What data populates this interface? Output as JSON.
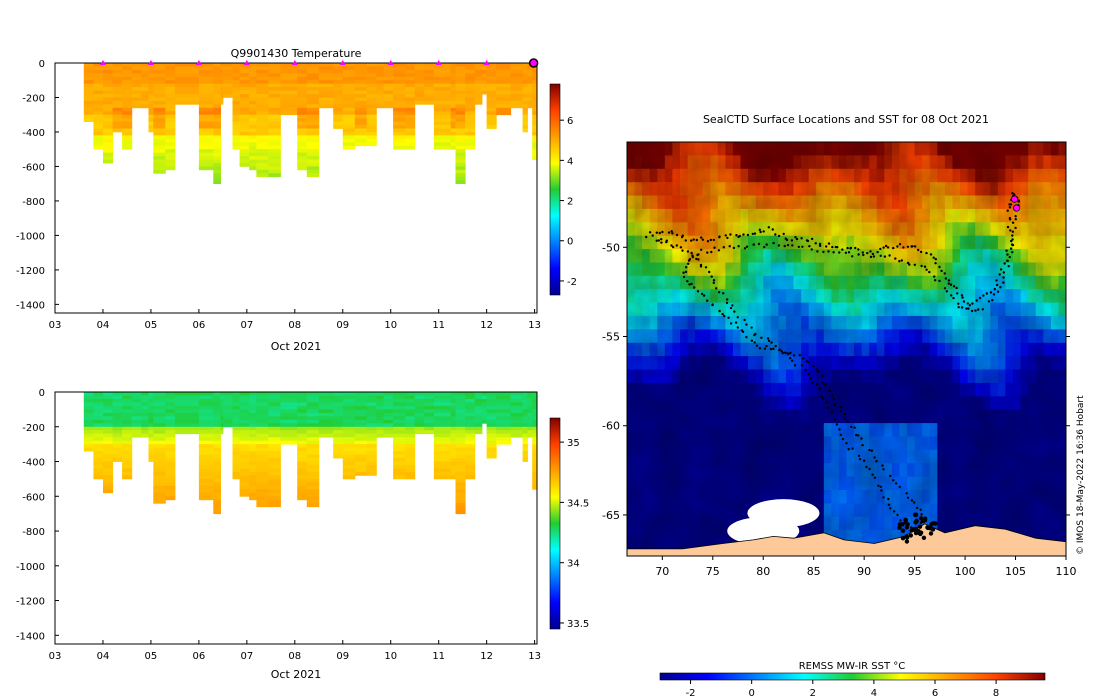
{
  "chart_data": [
    {
      "id": "temperature",
      "type": "heatmap",
      "title": "Q9901430  Temperature",
      "xlabel": "Oct 2021",
      "ylabel": "",
      "x_ticks": [
        "03",
        "04",
        "05",
        "06",
        "07",
        "08",
        "09",
        "10",
        "11",
        "12",
        "13"
      ],
      "x_range": [
        3,
        13.05
      ],
      "y_ticks": [
        0,
        -200,
        -400,
        -600,
        -800,
        -1000,
        -1200,
        -1400
      ],
      "y_range": [
        -1450,
        0
      ],
      "colorbar": {
        "range": [
          -2.7,
          7.8
        ],
        "ticks": [
          -2,
          0,
          2,
          4,
          6
        ]
      },
      "profile_markers_day": [
        4,
        5,
        6,
        7,
        8,
        9,
        10,
        11,
        12
      ],
      "profiles": [
        {
          "t": 3.6,
          "depth": 330
        },
        {
          "t": 3.8,
          "depth": 500
        },
        {
          "t": 4.0,
          "depth": 580
        },
        {
          "t": 4.2,
          "depth": 400
        },
        {
          "t": 4.4,
          "depth": 500
        },
        {
          "t": 4.6,
          "depth": 250
        },
        {
          "t": 4.8,
          "depth": 250
        },
        {
          "t": 4.95,
          "depth": 400
        },
        {
          "t": 5.05,
          "depth": 630
        },
        {
          "t": 5.3,
          "depth": 610
        },
        {
          "t": 5.5,
          "depth": 240
        },
        {
          "t": 6.0,
          "depth": 610
        },
        {
          "t": 6.3,
          "depth": 690
        },
        {
          "t": 6.45,
          "depth": 230
        },
        {
          "t": 6.5,
          "depth": 200
        },
        {
          "t": 6.7,
          "depth": 500
        },
        {
          "t": 6.85,
          "depth": 600
        },
        {
          "t": 7.05,
          "depth": 620
        },
        {
          "t": 7.2,
          "depth": 660
        },
        {
          "t": 7.45,
          "depth": 660
        },
        {
          "t": 7.7,
          "depth": 300
        },
        {
          "t": 8.05,
          "depth": 610
        },
        {
          "t": 8.25,
          "depth": 660
        },
        {
          "t": 8.5,
          "depth": 250
        },
        {
          "t": 8.8,
          "depth": 380
        },
        {
          "t": 9.0,
          "depth": 500
        },
        {
          "t": 9.25,
          "depth": 470
        },
        {
          "t": 9.5,
          "depth": 470
        },
        {
          "t": 9.7,
          "depth": 250
        },
        {
          "t": 9.85,
          "depth": 250
        },
        {
          "t": 10.05,
          "depth": 500
        },
        {
          "t": 10.3,
          "depth": 500
        },
        {
          "t": 10.5,
          "depth": 230
        },
        {
          "t": 10.7,
          "depth": 240
        },
        {
          "t": 10.9,
          "depth": 500
        },
        {
          "t": 11.25,
          "depth": 500
        },
        {
          "t": 11.35,
          "depth": 700
        },
        {
          "t": 11.55,
          "depth": 500
        },
        {
          "t": 11.75,
          "depth": 230
        },
        {
          "t": 11.9,
          "depth": 180
        },
        {
          "t": 12.0,
          "depth": 380
        },
        {
          "t": 12.2,
          "depth": 300
        },
        {
          "t": 12.5,
          "depth": 250
        },
        {
          "t": 12.75,
          "depth": 390
        },
        {
          "t": 12.85,
          "depth": 250
        },
        {
          "t": 12.95,
          "depth": 550
        }
      ]
    },
    {
      "id": "salinity",
      "type": "heatmap",
      "title": "",
      "xlabel": "Oct 2021",
      "ylabel": "",
      "x_ticks": [
        "03",
        "04",
        "05",
        "06",
        "07",
        "08",
        "09",
        "10",
        "11",
        "12",
        "13"
      ],
      "x_range": [
        3,
        13.05
      ],
      "y_ticks": [
        0,
        -200,
        -400,
        -600,
        -800,
        -1000,
        -1200,
        -1400
      ],
      "y_range": [
        -1450,
        0
      ],
      "colorbar": {
        "range": [
          33.45,
          35.2
        ],
        "ticks": [
          33.5,
          34,
          34.5,
          35
        ]
      },
      "profiles": [
        {
          "t": 3.6,
          "depth": 330
        },
        {
          "t": 3.8,
          "depth": 500
        },
        {
          "t": 4.0,
          "depth": 580
        },
        {
          "t": 4.2,
          "depth": 400
        },
        {
          "t": 4.4,
          "depth": 500
        },
        {
          "t": 4.6,
          "depth": 250
        },
        {
          "t": 4.8,
          "depth": 250
        },
        {
          "t": 4.95,
          "depth": 400
        },
        {
          "t": 5.05,
          "depth": 630
        },
        {
          "t": 5.3,
          "depth": 610
        },
        {
          "t": 5.5,
          "depth": 240
        },
        {
          "t": 6.0,
          "depth": 610
        },
        {
          "t": 6.3,
          "depth": 690
        },
        {
          "t": 6.45,
          "depth": 230
        },
        {
          "t": 6.5,
          "depth": 200
        },
        {
          "t": 6.7,
          "depth": 500
        },
        {
          "t": 6.85,
          "depth": 600
        },
        {
          "t": 7.05,
          "depth": 620
        },
        {
          "t": 7.2,
          "depth": 660
        },
        {
          "t": 7.45,
          "depth": 660
        },
        {
          "t": 7.7,
          "depth": 300
        },
        {
          "t": 8.05,
          "depth": 610
        },
        {
          "t": 8.25,
          "depth": 660
        },
        {
          "t": 8.5,
          "depth": 250
        },
        {
          "t": 8.8,
          "depth": 380
        },
        {
          "t": 9.0,
          "depth": 500
        },
        {
          "t": 9.25,
          "depth": 470
        },
        {
          "t": 9.5,
          "depth": 470
        },
        {
          "t": 9.7,
          "depth": 250
        },
        {
          "t": 9.85,
          "depth": 250
        },
        {
          "t": 10.05,
          "depth": 500
        },
        {
          "t": 10.3,
          "depth": 500
        },
        {
          "t": 10.5,
          "depth": 230
        },
        {
          "t": 10.7,
          "depth": 240
        },
        {
          "t": 10.9,
          "depth": 500
        },
        {
          "t": 11.25,
          "depth": 500
        },
        {
          "t": 11.35,
          "depth": 700
        },
        {
          "t": 11.55,
          "depth": 500
        },
        {
          "t": 11.75,
          "depth": 230
        },
        {
          "t": 11.9,
          "depth": 180
        },
        {
          "t": 12.0,
          "depth": 380
        },
        {
          "t": 12.2,
          "depth": 300
        },
        {
          "t": 12.5,
          "depth": 250
        },
        {
          "t": 12.75,
          "depth": 390
        },
        {
          "t": 12.85,
          "depth": 250
        },
        {
          "t": 12.95,
          "depth": 550
        }
      ]
    },
    {
      "id": "sst_map",
      "type": "heatmap",
      "title": "SealCTD Surface Locations and SST for 08 Oct 2021",
      "x_ticks": [
        70,
        75,
        80,
        85,
        90,
        95,
        100,
        105,
        110
      ],
      "x_range": [
        66.5,
        110
      ],
      "y_ticks": [
        -50,
        -55,
        -60,
        -65
      ],
      "y_range": [
        -67.3,
        -44.1
      ],
      "colorbar": {
        "label": "REMSS MW-IR SST °C",
        "range": [
          -3,
          9.6
        ],
        "ticks": [
          -2,
          0,
          2,
          4,
          6,
          8
        ]
      },
      "track": [
        [
          68.6,
          -49.3
        ],
        [
          70.5,
          -49.1
        ],
        [
          72.5,
          -49.5
        ],
        [
          74.5,
          -49.6
        ],
        [
          76.5,
          -49.4
        ],
        [
          78.5,
          -49.2
        ],
        [
          80.5,
          -49.0
        ],
        [
          82.5,
          -49.5
        ],
        [
          84.5,
          -49.6
        ],
        [
          86.5,
          -49.9
        ],
        [
          88.5,
          -50.1
        ],
        [
          90.5,
          -50.3
        ],
        [
          92.5,
          -50.0
        ],
        [
          94.5,
          -49.9
        ],
        [
          96.5,
          -50.4
        ],
        [
          98.0,
          -51.5
        ],
        [
          99.0,
          -52.4
        ],
        [
          100.5,
          -53.3
        ],
        [
          102.5,
          -52.6
        ],
        [
          104.0,
          -51.0
        ],
        [
          104.6,
          -49.5
        ],
        [
          104.2,
          -48.0
        ],
        [
          104.8,
          -47.0
        ],
        [
          105.3,
          -47.4
        ],
        [
          104.9,
          -48.6
        ],
        [
          104.5,
          -50.5
        ],
        [
          103.5,
          -52.2
        ],
        [
          101.5,
          -53.6
        ],
        [
          99.5,
          -53.4
        ],
        [
          97.5,
          -52.0
        ],
        [
          95.5,
          -51.0
        ],
        [
          93.0,
          -50.6
        ],
        [
          90.0,
          -50.5
        ],
        [
          87.0,
          -50.3
        ],
        [
          84.0,
          -50.0
        ],
        [
          81.0,
          -49.8
        ],
        [
          78.0,
          -50.0
        ],
        [
          75.0,
          -50.1
        ],
        [
          73.0,
          -50.4
        ],
        [
          72.0,
          -51.5
        ],
        [
          73.5,
          -52.5
        ],
        [
          75.5,
          -53.5
        ],
        [
          77.5,
          -54.5
        ],
        [
          79.5,
          -55.5
        ],
        [
          81.5,
          -55.8
        ],
        [
          83.5,
          -56.0
        ],
        [
          85.5,
          -57.0
        ],
        [
          87.0,
          -58.5
        ],
        [
          88.5,
          -59.8
        ],
        [
          90.0,
          -61.0
        ],
        [
          92.0,
          -62.5
        ],
        [
          94.5,
          -64.0
        ],
        [
          96.0,
          -65.2
        ],
        [
          95.0,
          -66.0
        ],
        [
          93.0,
          -64.8
        ],
        [
          91.5,
          -63.5
        ],
        [
          90.0,
          -62.0
        ],
        [
          88.0,
          -60.8
        ],
        [
          86.5,
          -59.0
        ],
        [
          85.0,
          -57.5
        ],
        [
          83.0,
          -56.3
        ],
        [
          81.0,
          -55.3
        ],
        [
          79.0,
          -54.8
        ],
        [
          77.0,
          -53.5
        ],
        [
          75.5,
          -52.2
        ],
        [
          74.0,
          -51.0
        ],
        [
          72.5,
          -50.3
        ],
        [
          70.5,
          -49.7
        ],
        [
          69.0,
          -49.5
        ]
      ],
      "cluster_points": [
        [
          94.5,
          -65.5
        ],
        [
          95.2,
          -65.8
        ],
        [
          96.0,
          -65.4
        ],
        [
          95.6,
          -66.1
        ],
        [
          94.8,
          -66.0
        ],
        [
          96.3,
          -65.9
        ],
        [
          95.0,
          -65.2
        ],
        [
          93.8,
          -65.7
        ],
        [
          96.8,
          -65.6
        ],
        [
          94.2,
          -66.3
        ]
      ],
      "highlight_points": [
        [
          104.9,
          -47.3
        ],
        [
          105.1,
          -47.8
        ]
      ],
      "ice_patches": [
        [
          82,
          -64.9
        ],
        [
          80,
          -65.9
        ]
      ],
      "antarctic_coast": [
        [
          66.5,
          -67.3
        ],
        [
          66.5,
          -66.9
        ],
        [
          72,
          -66.9
        ],
        [
          76,
          -66.6
        ],
        [
          79,
          -66.4
        ],
        [
          81,
          -66.2
        ],
        [
          83,
          -66.3
        ],
        [
          86,
          -66.0
        ],
        [
          88,
          -66.4
        ],
        [
          91,
          -66.6
        ],
        [
          94,
          -66.2
        ],
        [
          96,
          -65.5
        ],
        [
          98,
          -66.0
        ],
        [
          101,
          -65.6
        ],
        [
          104,
          -65.8
        ],
        [
          107,
          -66.3
        ],
        [
          110,
          -66.5
        ],
        [
          110,
          -67.3
        ]
      ]
    }
  ],
  "watermark": "© IMOS 18-May-2022 16:36 Hobart",
  "colors": {
    "land": "#fdc998",
    "ice": "#ffffff",
    "track": "#000000",
    "marker": "#ff00ff"
  }
}
